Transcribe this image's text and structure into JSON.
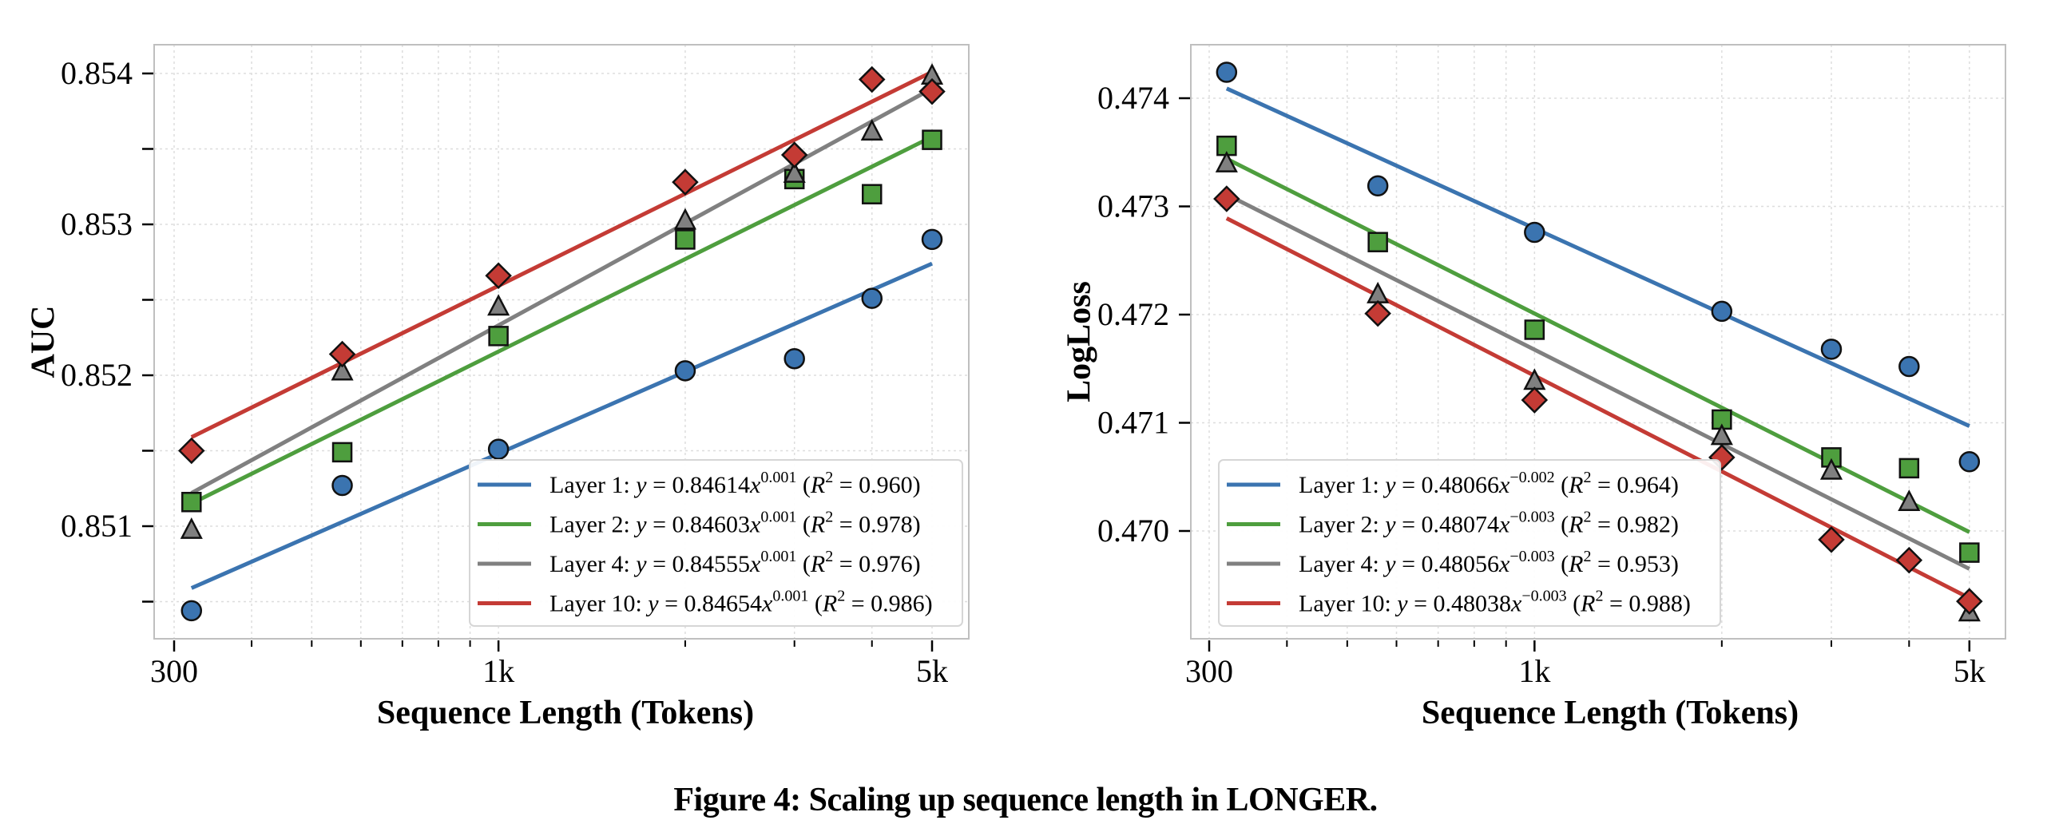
{
  "figure": {
    "caption": "Figure 4: Scaling up sequence length in LONGER."
  },
  "colors": {
    "layer1": "#3b74b0",
    "layer2": "#4e9e3e",
    "layer4": "#808080",
    "layer10": "#c43b35",
    "frame": "#bfbfbf",
    "grid": "#dddddd"
  },
  "chart_data": [
    {
      "type": "scatter",
      "title": "",
      "xlabel": "Sequence Length (Tokens)",
      "ylabel": "AUC",
      "xscale": "log",
      "xlim": [
        285,
        5700
      ],
      "ylim": [
        0.85033,
        0.85426
      ],
      "xticks": [
        300,
        1000,
        5000
      ],
      "xtick_labels": [
        "300",
        "1k",
        "5k"
      ],
      "x_minor_ticks": [
        400,
        500,
        600,
        700,
        800,
        900,
        2000,
        3000,
        4000
      ],
      "yticks": [
        0.8505,
        0.851,
        0.8515,
        0.852,
        0.8525,
        0.853,
        0.8535,
        0.854
      ],
      "ytick_labels": [
        "",
        "0.851",
        "",
        "0.852",
        "",
        "0.853",
        "",
        "0.854"
      ],
      "grid": true,
      "legend_position": "lower-right",
      "x": [
        320,
        560,
        1000,
        2000,
        3000,
        4000,
        5000
      ],
      "series": [
        {
          "name": "Layer 1",
          "marker": "circle",
          "color_key": "layer1",
          "values": [
            0.85044,
            0.85127,
            0.85151,
            0.85203,
            0.85211,
            0.85251,
            0.8529
          ],
          "fit": {
            "label_prefix": "Layer 1: ",
            "coef": "0.84614",
            "exp": "0.001",
            "r2": "0.960",
            "y_start": 0.85059,
            "y_end": 0.85274
          }
        },
        {
          "name": "Layer 2",
          "marker": "square",
          "color_key": "layer2",
          "values": [
            0.85116,
            0.85149,
            0.85226,
            0.8529,
            0.8533,
            0.8532,
            0.85356
          ],
          "fit": {
            "label_prefix": "Layer 2: ",
            "coef": "0.84603",
            "exp": "0.001",
            "r2": "0.978",
            "y_start": 0.85115,
            "y_end": 0.85358
          }
        },
        {
          "name": "Layer 4",
          "marker": "triangle",
          "color_key": "layer4",
          "values": [
            0.85097,
            0.85202,
            0.85245,
            0.85302,
            0.85333,
            0.85361,
            0.85398
          ],
          "fit": {
            "label_prefix": "Layer 4: ",
            "coef": "0.84555",
            "exp": "0.001",
            "r2": "0.976",
            "y_start": 0.85122,
            "y_end": 0.8539
          }
        },
        {
          "name": "Layer 10",
          "marker": "diamond",
          "color_key": "layer10",
          "values": [
            0.8515,
            0.85214,
            0.85266,
            0.85328,
            0.85346,
            0.85396,
            0.85388
          ],
          "fit": {
            "label_prefix": "Layer 10: ",
            "coef": "0.84654",
            "exp": "0.001",
            "r2": "0.986",
            "y_start": 0.85159,
            "y_end": 0.85401
          }
        }
      ]
    },
    {
      "type": "scatter",
      "title": "",
      "xlabel": "Sequence Length (Tokens)",
      "ylabel": "LogLoss",
      "xscale": "log",
      "xlim": [
        285,
        5700
      ],
      "ylim": [
        0.469,
        0.4745
      ],
      "xticks": [
        300,
        1000,
        5000
      ],
      "xtick_labels": [
        "300",
        "1k",
        "5k"
      ],
      "x_minor_ticks": [
        400,
        500,
        600,
        700,
        800,
        900,
        2000,
        3000,
        4000
      ],
      "yticks": [
        0.47,
        0.471,
        0.472,
        0.473,
        0.474
      ],
      "ytick_labels": [
        "0.470",
        "0.471",
        "0.472",
        "0.473",
        "0.474"
      ],
      "grid": true,
      "legend_position": "lower-left",
      "x": [
        320,
        560,
        1000,
        2000,
        3000,
        4000,
        5000
      ],
      "series": [
        {
          "name": "Layer 1",
          "marker": "circle",
          "color_key": "layer1",
          "values": [
            0.47424,
            0.47319,
            0.47276,
            0.47203,
            0.47168,
            0.47152,
            0.47064
          ],
          "fit": {
            "label_prefix": "Layer 1: ",
            "coef": "0.48066",
            "exp": "−0.002",
            "r2": "0.964",
            "y_start": 0.47409,
            "y_end": 0.47097
          }
        },
        {
          "name": "Layer 2",
          "marker": "square",
          "color_key": "layer2",
          "values": [
            0.47356,
            0.47267,
            0.47186,
            0.47103,
            0.47068,
            0.47058,
            0.4698
          ],
          "fit": {
            "label_prefix": "Layer 2: ",
            "coef": "0.48074",
            "exp": "−0.003",
            "r2": "0.982",
            "y_start": 0.47344,
            "y_end": 0.46999
          }
        },
        {
          "name": "Layer 4",
          "marker": "triangle",
          "color_key": "layer4",
          "values": [
            0.47339,
            0.47218,
            0.47138,
            0.47087,
            0.47055,
            0.47026,
            0.46924
          ],
          "fit": {
            "label_prefix": "Layer 4: ",
            "coef": "0.48056",
            "exp": "−0.003",
            "r2": "0.953",
            "y_start": 0.47311,
            "y_end": 0.46965
          }
        },
        {
          "name": "Layer 10",
          "marker": "diamond",
          "color_key": "layer10",
          "values": [
            0.47307,
            0.47201,
            0.47121,
            0.47068,
            0.46992,
            0.46973,
            0.46935
          ],
          "fit": {
            "label_prefix": "Layer 10: ",
            "coef": "0.48038",
            "exp": "−0.003",
            "r2": "0.988",
            "y_start": 0.47289,
            "y_end": 0.46938
          }
        }
      ]
    }
  ]
}
